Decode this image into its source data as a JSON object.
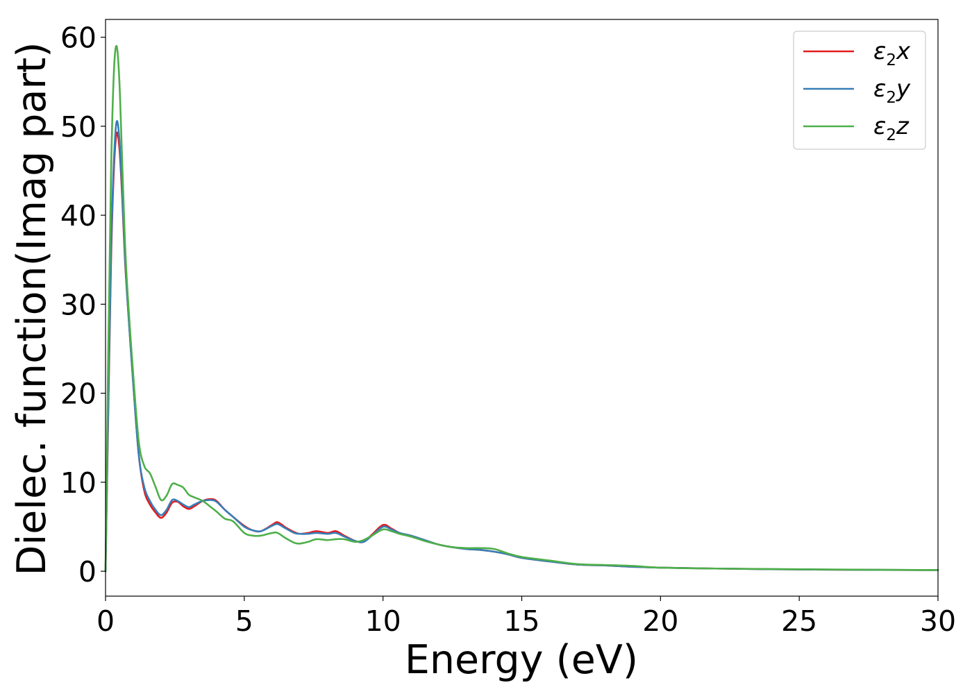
{
  "chart_data": {
    "type": "line",
    "title": "",
    "xlabel": "Energy (eV)",
    "ylabel": "Dielec. function(Imag part)",
    "xlim": [
      0,
      30
    ],
    "ylim": [
      -2.8,
      62
    ],
    "xticks": [
      0,
      5,
      10,
      15,
      20,
      25,
      30
    ],
    "yticks": [
      0,
      10,
      20,
      30,
      40,
      50,
      60
    ],
    "grid": false,
    "legend_position": "top-right",
    "x": [
      0,
      0.1,
      0.2,
      0.3,
      0.4,
      0.5,
      0.6,
      0.7,
      0.8,
      1.0,
      1.2,
      1.4,
      1.6,
      1.8,
      2.0,
      2.2,
      2.4,
      2.6,
      2.8,
      3.0,
      3.2,
      3.5,
      3.8,
      4.0,
      4.3,
      4.6,
      5.0,
      5.3,
      5.6,
      6.0,
      6.2,
      6.5,
      6.8,
      7.0,
      7.3,
      7.6,
      8.0,
      8.3,
      8.6,
      9.0,
      9.3,
      9.6,
      10.0,
      10.3,
      10.6,
      11.0,
      11.5,
      12.0,
      12.5,
      13.0,
      13.5,
      14.0,
      14.5,
      15.0,
      16.0,
      17.0,
      18.0,
      19.0,
      20.0,
      22.0,
      25.0,
      28.0,
      30.0
    ],
    "series": [
      {
        "name": "ε2x",
        "sub": "2",
        "letter": "x",
        "color": "#e41a1c",
        "values": [
          0,
          18,
          35,
          45,
          49.2,
          47.5,
          42,
          35,
          30,
          21,
          13,
          9,
          7.5,
          6.6,
          6.0,
          6.6,
          7.7,
          7.8,
          7.3,
          7.0,
          7.3,
          7.9,
          8.1,
          7.9,
          6.9,
          6.1,
          5.1,
          4.6,
          4.5,
          5.2,
          5.5,
          4.9,
          4.4,
          4.2,
          4.3,
          4.5,
          4.3,
          4.5,
          4.0,
          3.4,
          3.3,
          4.1,
          5.2,
          4.8,
          4.3,
          4.0,
          3.5,
          3.0,
          2.7,
          2.5,
          2.4,
          2.2,
          1.9,
          1.5,
          1.1,
          0.75,
          0.65,
          0.5,
          0.4,
          0.3,
          0.2,
          0.15,
          0.13
        ]
      },
      {
        "name": "ε2y",
        "sub": "2",
        "letter": "y",
        "color": "#377eb8",
        "values": [
          0,
          19,
          36,
          46,
          50.5,
          48.5,
          42.5,
          35.5,
          30,
          21,
          13,
          9.4,
          7.9,
          6.9,
          6.3,
          6.9,
          8.0,
          7.9,
          7.5,
          7.2,
          7.5,
          7.9,
          8.0,
          7.8,
          6.9,
          6.1,
          5.0,
          4.6,
          4.5,
          5.1,
          5.3,
          4.8,
          4.3,
          4.2,
          4.2,
          4.3,
          4.2,
          4.3,
          3.9,
          3.4,
          3.3,
          4.0,
          5.0,
          4.7,
          4.3,
          4.0,
          3.5,
          3.0,
          2.7,
          2.5,
          2.4,
          2.2,
          1.9,
          1.5,
          1.1,
          0.75,
          0.65,
          0.5,
          0.4,
          0.3,
          0.2,
          0.15,
          0.13
        ]
      },
      {
        "name": "ε2z",
        "sub": "2",
        "letter": "z",
        "color": "#4daf4a",
        "values": [
          0,
          25,
          45,
          56,
          59.0,
          55,
          46,
          37,
          31,
          22,
          14.5,
          11.8,
          11.0,
          9.5,
          8.0,
          8.5,
          9.8,
          9.7,
          9.4,
          8.6,
          8.3,
          7.9,
          7.2,
          6.7,
          5.9,
          5.6,
          4.3,
          4.0,
          4.0,
          4.3,
          4.3,
          3.7,
          3.2,
          3.1,
          3.3,
          3.6,
          3.5,
          3.6,
          3.6,
          3.3,
          3.5,
          4.0,
          4.7,
          4.5,
          4.2,
          3.9,
          3.4,
          3.0,
          2.7,
          2.6,
          2.6,
          2.5,
          2.0,
          1.6,
          1.2,
          0.8,
          0.7,
          0.6,
          0.4,
          0.3,
          0.22,
          0.16,
          0.13
        ]
      }
    ]
  }
}
